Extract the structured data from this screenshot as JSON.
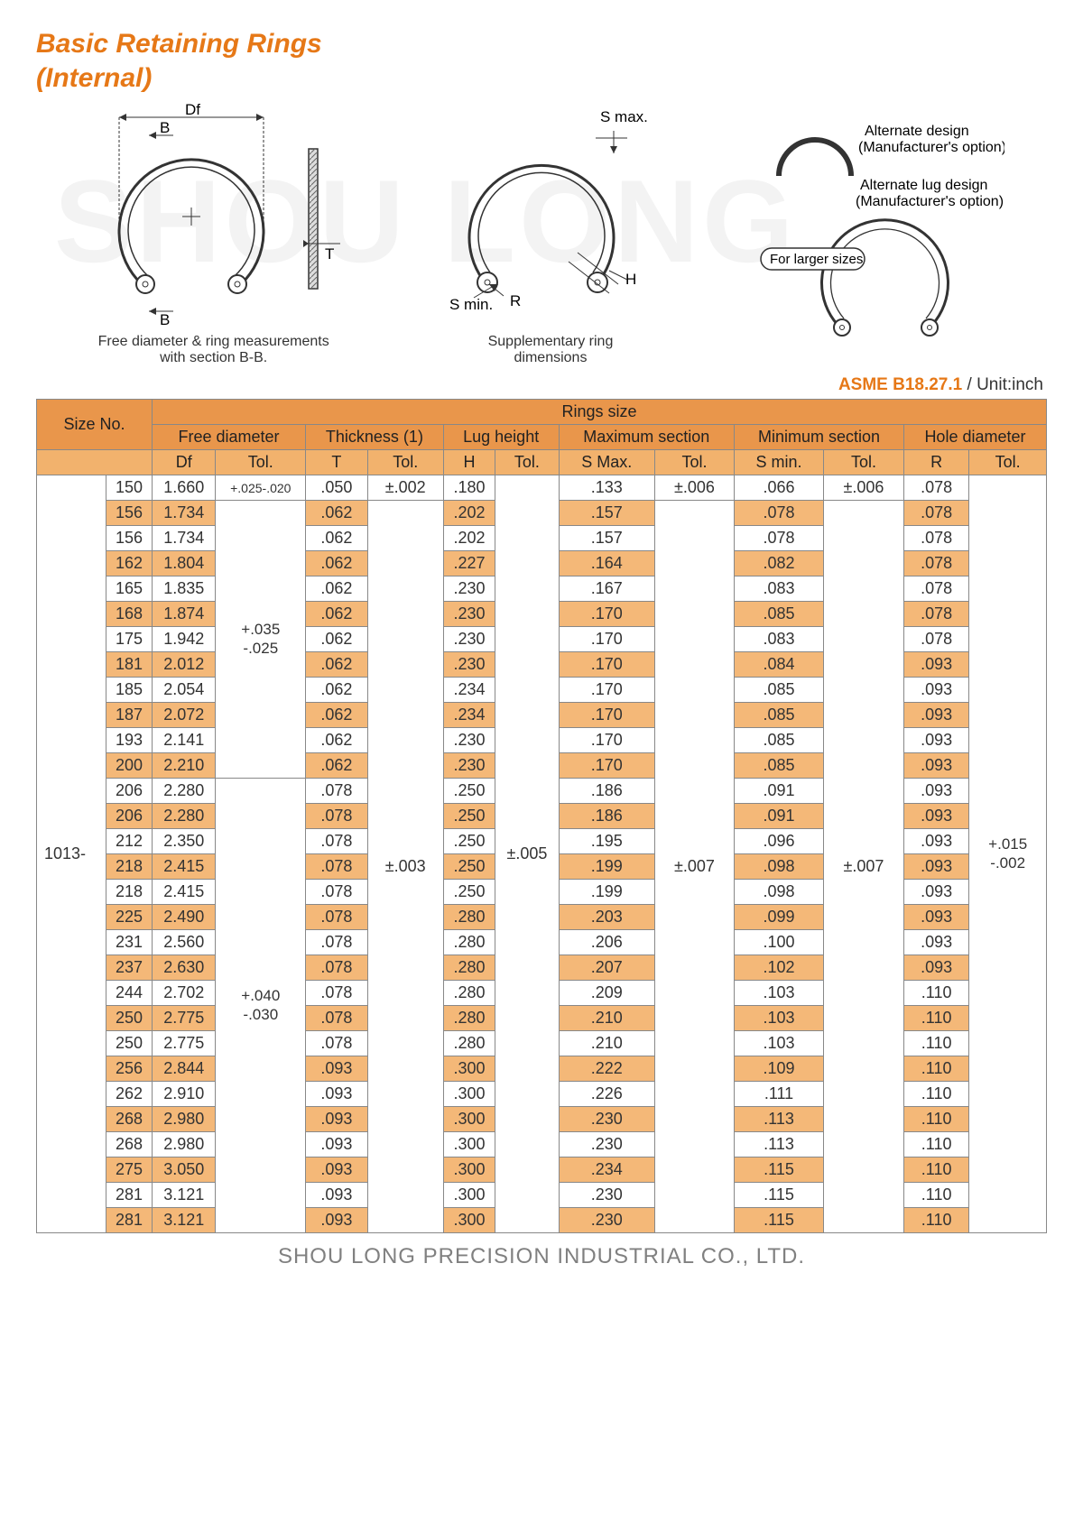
{
  "title_line1": "Basic Retaining Rings",
  "title_line2": "(Internal)",
  "watermark": "SHOU LONG",
  "diagram1": {
    "Df": "Df",
    "B_top": "B",
    "B_bot": "B",
    "T": "T",
    "caption1": "Free diameter & ring measurements",
    "caption2": "with section B-B."
  },
  "diagram2": {
    "Smax": "S max.",
    "Smin": "S min.",
    "R": "R",
    "H": "H",
    "caption1": "Supplementary ring",
    "caption2": "dimensions"
  },
  "diagram3": {
    "note1a": "Alternate design",
    "note1b": "(Manufacturer's option)",
    "note2a": "Alternate lug design",
    "note2b": "(Manufacturer's option)",
    "note3": "For larger sizes"
  },
  "standard": {
    "label": "ASME B18.27.1",
    "unit": " / Unit:inch"
  },
  "headers": {
    "size_no": "Size No.",
    "rings_size": "Rings size",
    "free_diameter": "Free diameter",
    "thickness": "Thickness (1)",
    "lug_height": "Lug height",
    "max_section": "Maximum section",
    "min_section": "Minimum section",
    "hole_diameter": "Hole diameter",
    "Df": "Df",
    "T": "T",
    "H": "H",
    "Smax": "S Max.",
    "Smin": "S min.",
    "R": "R",
    "Tol": "Tol."
  },
  "series": "1013-",
  "tolerances": {
    "Df_row1": "+.025-.020",
    "Df_group1_a": "+.035",
    "Df_group1_b": "-.025",
    "Df_group2_a": "+.040",
    "Df_group2_b": "-.030",
    "T_row1": "±.002",
    "T_rest": "±.003",
    "H_all": "±.005",
    "Smax_row1": "±.006",
    "Smax_rest": "±.007",
    "Smin_row1": "±.006",
    "Smin_rest": "±.007",
    "R_a": "+.015",
    "R_b": "-.002"
  },
  "rows": [
    {
      "size": "150",
      "Df": "1.660",
      "T": ".050",
      "H": ".180",
      "Smax": ".133",
      "Smin": ".066",
      "R": ".078"
    },
    {
      "size": "156",
      "Df": "1.734",
      "T": ".062",
      "H": ".202",
      "Smax": ".157",
      "Smin": ".078",
      "R": ".078"
    },
    {
      "size": "156",
      "Df": "1.734",
      "T": ".062",
      "H": ".202",
      "Smax": ".157",
      "Smin": ".078",
      "R": ".078"
    },
    {
      "size": "162",
      "Df": "1.804",
      "T": ".062",
      "H": ".227",
      "Smax": ".164",
      "Smin": ".082",
      "R": ".078"
    },
    {
      "size": "165",
      "Df": "1.835",
      "T": ".062",
      "H": ".230",
      "Smax": ".167",
      "Smin": ".083",
      "R": ".078"
    },
    {
      "size": "168",
      "Df": "1.874",
      "T": ".062",
      "H": ".230",
      "Smax": ".170",
      "Smin": ".085",
      "R": ".078"
    },
    {
      "size": "175",
      "Df": "1.942",
      "T": ".062",
      "H": ".230",
      "Smax": ".170",
      "Smin": ".083",
      "R": ".078"
    },
    {
      "size": "181",
      "Df": "2.012",
      "T": ".062",
      "H": ".230",
      "Smax": ".170",
      "Smin": ".084",
      "R": ".093"
    },
    {
      "size": "185",
      "Df": "2.054",
      "T": ".062",
      "H": ".234",
      "Smax": ".170",
      "Smin": ".085",
      "R": ".093"
    },
    {
      "size": "187",
      "Df": "2.072",
      "T": ".062",
      "H": ".234",
      "Smax": ".170",
      "Smin": ".085",
      "R": ".093"
    },
    {
      "size": "193",
      "Df": "2.141",
      "T": ".062",
      "H": ".230",
      "Smax": ".170",
      "Smin": ".085",
      "R": ".093"
    },
    {
      "size": "200",
      "Df": "2.210",
      "T": ".062",
      "H": ".230",
      "Smax": ".170",
      "Smin": ".085",
      "R": ".093"
    },
    {
      "size": "206",
      "Df": "2.280",
      "T": ".078",
      "H": ".250",
      "Smax": ".186",
      "Smin": ".091",
      "R": ".093"
    },
    {
      "size": "206",
      "Df": "2.280",
      "T": ".078",
      "H": ".250",
      "Smax": ".186",
      "Smin": ".091",
      "R": ".093"
    },
    {
      "size": "212",
      "Df": "2.350",
      "T": ".078",
      "H": ".250",
      "Smax": ".195",
      "Smin": ".096",
      "R": ".093"
    },
    {
      "size": "218",
      "Df": "2.415",
      "T": ".078",
      "H": ".250",
      "Smax": ".199",
      "Smin": ".098",
      "R": ".093"
    },
    {
      "size": "218",
      "Df": "2.415",
      "T": ".078",
      "H": ".250",
      "Smax": ".199",
      "Smin": ".098",
      "R": ".093"
    },
    {
      "size": "225",
      "Df": "2.490",
      "T": ".078",
      "H": ".280",
      "Smax": ".203",
      "Smin": ".099",
      "R": ".093"
    },
    {
      "size": "231",
      "Df": "2.560",
      "T": ".078",
      "H": ".280",
      "Smax": ".206",
      "Smin": ".100",
      "R": ".093"
    },
    {
      "size": "237",
      "Df": "2.630",
      "T": ".078",
      "H": ".280",
      "Smax": ".207",
      "Smin": ".102",
      "R": ".093"
    },
    {
      "size": "244",
      "Df": "2.702",
      "T": ".078",
      "H": ".280",
      "Smax": ".209",
      "Smin": ".103",
      "R": ".110"
    },
    {
      "size": "250",
      "Df": "2.775",
      "T": ".078",
      "H": ".280",
      "Smax": ".210",
      "Smin": ".103",
      "R": ".110"
    },
    {
      "size": "250",
      "Df": "2.775",
      "T": ".078",
      "H": ".280",
      "Smax": ".210",
      "Smin": ".103",
      "R": ".110"
    },
    {
      "size": "256",
      "Df": "2.844",
      "T": ".093",
      "H": ".300",
      "Smax": ".222",
      "Smin": ".109",
      "R": ".110"
    },
    {
      "size": "262",
      "Df": "2.910",
      "T": ".093",
      "H": ".300",
      "Smax": ".226",
      "Smin": ".111",
      "R": ".110"
    },
    {
      "size": "268",
      "Df": "2.980",
      "T": ".093",
      "H": ".300",
      "Smax": ".230",
      "Smin": ".113",
      "R": ".110"
    },
    {
      "size": "268",
      "Df": "2.980",
      "T": ".093",
      "H": ".300",
      "Smax": ".230",
      "Smin": ".113",
      "R": ".110"
    },
    {
      "size": "275",
      "Df": "3.050",
      "T": ".093",
      "H": ".300",
      "Smax": ".234",
      "Smin": ".115",
      "R": ".110"
    },
    {
      "size": "281",
      "Df": "3.121",
      "T": ".093",
      "H": ".300",
      "Smax": ".230",
      "Smin": ".115",
      "R": ".110"
    },
    {
      "size": "281",
      "Df": "3.121",
      "T": ".093",
      "H": ".300",
      "Smax": ".230",
      "Smin": ".115",
      "R": ".110"
    }
  ],
  "footer": "SHOU LONG PRECISION INDUSTRIAL CO., LTD.",
  "colors": {
    "accent": "#e67817",
    "header_bg": "#e9964b",
    "subheader_bg": "#f2b26d",
    "alt_row_bg": "#f4b878",
    "watermark": "#f3f3f3",
    "border": "#888888",
    "footer_text": "#808080"
  }
}
